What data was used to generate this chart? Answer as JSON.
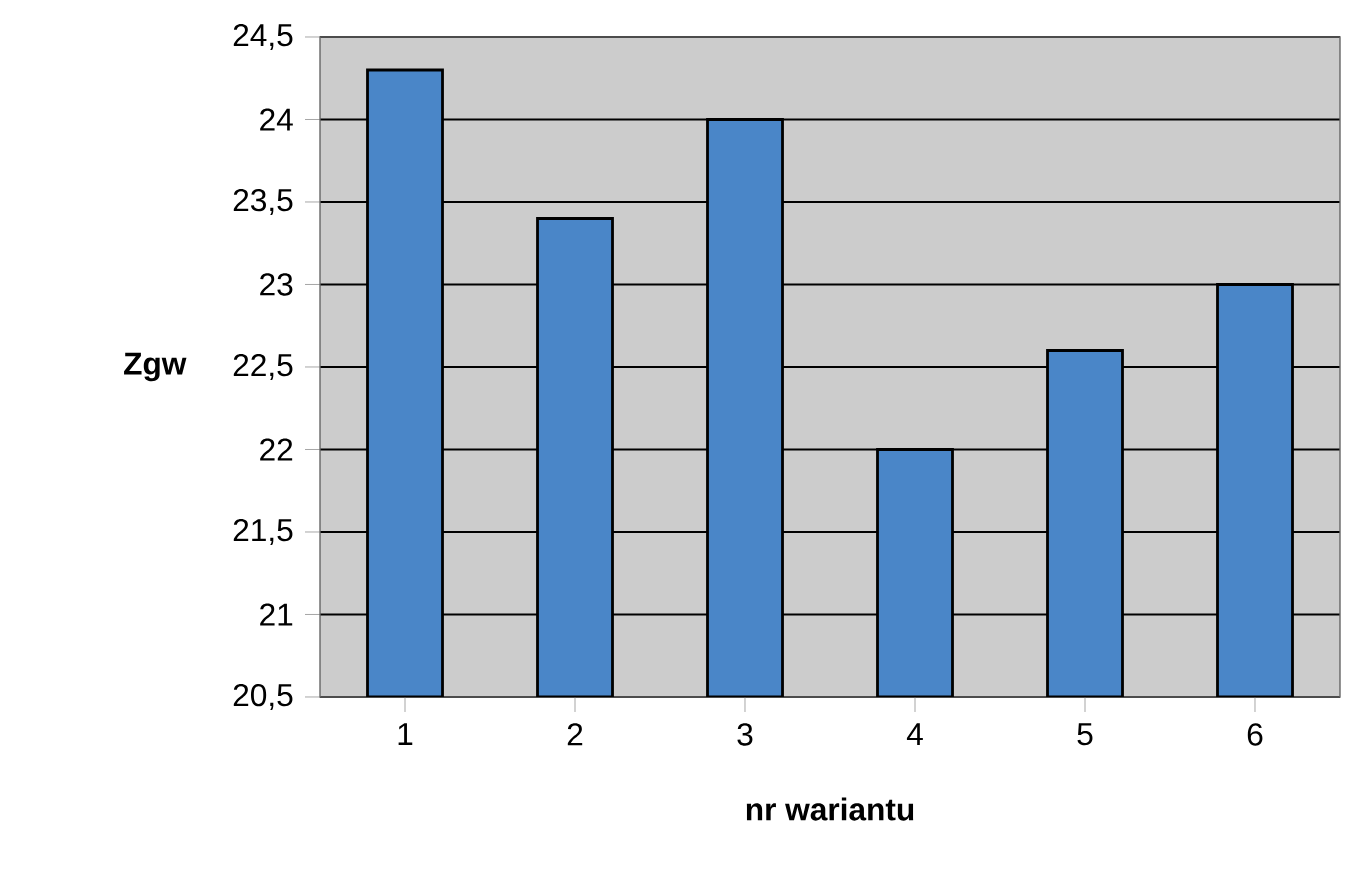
{
  "chart_data": {
    "type": "bar",
    "xlabel": "nr wariantu",
    "ylabel": "Zgw",
    "categories": [
      "1",
      "2",
      "3",
      "4",
      "5",
      "6"
    ],
    "values": [
      24.3,
      23.4,
      24.0,
      22.0,
      22.6,
      23.0
    ],
    "color": "#4a86c8",
    "ylim": [
      20.5,
      24.5
    ],
    "yticks": [
      {
        "value": 20.5,
        "label": "20,5"
      },
      {
        "value": 21,
        "label": "21"
      },
      {
        "value": 21.5,
        "label": "21,5"
      },
      {
        "value": 22,
        "label": "22"
      },
      {
        "value": 22.5,
        "label": "22,5"
      },
      {
        "value": 23,
        "label": "23"
      },
      {
        "value": 23.5,
        "label": "23,5"
      },
      {
        "value": 24,
        "label": "24"
      },
      {
        "value": 24.5,
        "label": "24,5"
      }
    ],
    "grid": "y"
  }
}
